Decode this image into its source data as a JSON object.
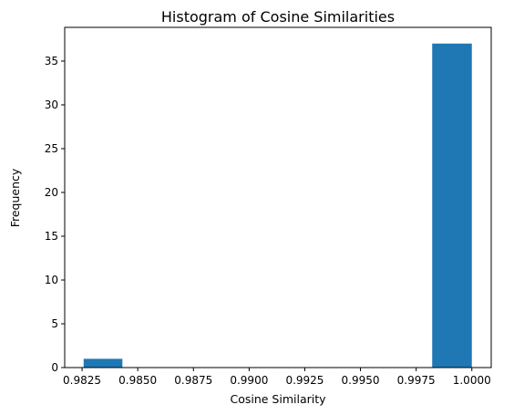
{
  "chart_data": {
    "type": "bar",
    "title": "Histogram of Cosine Similarities",
    "xlabel": "Cosine Similarity",
    "ylabel": "Frequency",
    "xlim": [
      0.98172,
      1.00087
    ],
    "ylim": [
      0,
      38.85
    ],
    "grid": false,
    "bins": [
      {
        "x0": 0.98257,
        "x1": 0.98431,
        "count": 1
      },
      {
        "x0": 0.98431,
        "x1": 0.98604,
        "count": 0
      },
      {
        "x0": 0.98604,
        "x1": 0.98778,
        "count": 0
      },
      {
        "x0": 0.98778,
        "x1": 0.98952,
        "count": 0
      },
      {
        "x0": 0.98952,
        "x1": 0.99126,
        "count": 0
      },
      {
        "x0": 0.99126,
        "x1": 0.993,
        "count": 0
      },
      {
        "x0": 0.993,
        "x1": 0.99474,
        "count": 0
      },
      {
        "x0": 0.99474,
        "x1": 0.99648,
        "count": 0
      },
      {
        "x0": 0.99648,
        "x1": 0.99822,
        "count": 0
      },
      {
        "x0": 0.99822,
        "x1": 1.0,
        "count": 37
      }
    ],
    "x_ticks": [
      "0.9825",
      "0.9850",
      "0.9875",
      "0.9900",
      "0.9925",
      "0.9950",
      "0.9975",
      "1.0000"
    ],
    "y_ticks": [
      "0",
      "5",
      "10",
      "15",
      "20",
      "25",
      "30",
      "35"
    ],
    "bar_color": "#1f77b4"
  }
}
